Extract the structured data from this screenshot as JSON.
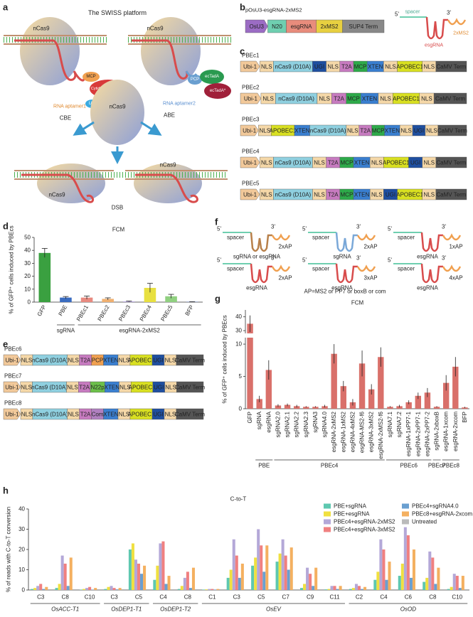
{
  "chart_data": [
    {
      "type": "bar",
      "panel": "d",
      "title": "FCM",
      "ylabel": "% of GFP⁺ cells induced by PBEcs",
      "categories": [
        "GFP",
        "PBE",
        "PBEc1",
        "PBEc2",
        "PBEc3",
        "PBEc4",
        "PBEc5",
        "BFP"
      ],
      "values": [
        38,
        3.5,
        3.5,
        2.5,
        0.5,
        11,
        4.5,
        0.2
      ],
      "errors": [
        3.5,
        0.8,
        1.2,
        0.8,
        0.3,
        3.5,
        1.5,
        0.1
      ],
      "colors": [
        "#3aa040",
        "#3a6cc0",
        "#e88a80",
        "#f0b070",
        "#b0a0d8",
        "#e8e040",
        "#90d080",
        "#5070c0"
      ],
      "groups": [
        null,
        "sgRNA",
        "esgRNA-2xMS2",
        "esgRNA-2xMS2",
        "esgRNA-2xMS2",
        "esgRNA-2xMS2",
        "esgRNA-2xMS2",
        "esgRNA-2xMS2"
      ],
      "ylim": [
        0,
        50
      ],
      "yticks": [
        0,
        10,
        20,
        30,
        40,
        50
      ]
    },
    {
      "type": "bar",
      "panel": "g",
      "title": "FCM",
      "ylabel": "% of GFP⁺ cells induced by PBEcs",
      "categories": [
        "GFP",
        "sgRNA",
        "esgRNA",
        "sgRNA2.0",
        "sgRNA2.1",
        "sgRNA2.2",
        "sgRNA2.3",
        "sgRNA3",
        "sgRNA4.0",
        "esgRNA-2xMS2",
        "esgRNA-1xMS2",
        "esgRNA-4xMS2",
        "esgRNA-MS2-f6",
        "esgRNA-3xMS2",
        "esgRNA-2xMS2-f6",
        "sgRNA7.1",
        "sgRNA7.2",
        "esgRNA-1xPP7-1",
        "esgRNA-2xPP7-1",
        "esgRNA-2xPP7-2",
        "sgRNA-2xboxB",
        "esgRNA-1xcom",
        "esgRNA-2xcom",
        "BFP"
      ],
      "values": [
        35,
        1.5,
        6,
        0.5,
        0.6,
        0.4,
        0.3,
        0.3,
        0.4,
        8.5,
        3.5,
        1,
        7,
        3,
        8,
        0.3,
        0.4,
        1,
        2,
        2.5,
        0.3,
        4,
        6.5,
        0.2
      ],
      "errors": [
        6,
        0.5,
        1.5,
        0.2,
        0.2,
        0.2,
        0.1,
        0.1,
        0.2,
        1.5,
        0.8,
        0.5,
        2,
        0.8,
        1.5,
        0.1,
        0.2,
        0.3,
        0.5,
        0.7,
        0.1,
        1.2,
        1.5,
        0.1
      ],
      "color": "#d9706a",
      "groups": [
        null,
        "PBE",
        "PBE",
        "PBEc4",
        "PBEc4",
        "PBEc4",
        "PBEc4",
        "PBEc4",
        "PBEc4",
        "PBEc4",
        "PBEc4",
        "PBEc4",
        "PBEc4",
        "PBEc4",
        "PBEc4",
        "PBEc6",
        "PBEc6",
        "PBEc6",
        "PBEc6",
        "PBEc6",
        "PBEc7",
        "PBEc8",
        "PBEc8",
        null
      ],
      "ylim": [
        0,
        45
      ],
      "axis_break": [
        11,
        28
      ],
      "yticks": [
        0,
        5,
        10,
        30,
        40
      ]
    },
    {
      "type": "grouped_bar",
      "panel": "h",
      "title": "C-to-T",
      "ylabel": "% of reads with C-to-T conversion",
      "categories": [
        "C3",
        "C8",
        "C10",
        "C3",
        "C5",
        "C4",
        "C8",
        "C1",
        "C3",
        "C5",
        "C7",
        "C9",
        "C11",
        "C2",
        "C4",
        "C6",
        "C8",
        "C10"
      ],
      "genes": [
        "OsACC-T1",
        "OsACC-T1",
        "OsACC-T1",
        "OsDEP1-T1",
        "OsDEP1-T1",
        "OsDEP1-T2",
        "OsDEP1-T2",
        "OsEV",
        "OsEV",
        "OsEV",
        "OsEV",
        "OsEV",
        "OsEV",
        "OsOD",
        "OsOD",
        "OsOD",
        "OsOD",
        "OsOD"
      ],
      "series": [
        {
          "name": "PBE+sgRNA",
          "color": "#5ec8b0",
          "values": [
            0.5,
            1,
            0.2,
            0.5,
            20,
            5,
            0.5,
            0.2,
            6,
            12,
            14,
            1,
            0.3,
            0.5,
            5,
            7,
            4,
            0.5
          ]
        },
        {
          "name": "PBE+esgRNA",
          "color": "#f0e040",
          "values": [
            1,
            3,
            0.5,
            1.5,
            23,
            12,
            2,
            0.3,
            10,
            16,
            18,
            3,
            0.5,
            1,
            9,
            13,
            6,
            1.5
          ]
        },
        {
          "name": "PBEc4+esgRNA-2xMS2",
          "color": "#b4a8d8",
          "values": [
            2,
            17,
            1,
            2,
            15,
            23,
            6,
            0.5,
            25,
            30,
            25,
            11,
            2,
            3,
            25,
            31,
            19,
            8
          ]
        },
        {
          "name": "PBEc4+esgRNA-3xMS2",
          "color": "#f08080",
          "values": [
            3,
            13,
            1.5,
            1,
            13,
            24,
            9,
            0.5,
            17,
            22,
            17,
            8,
            2,
            2,
            20,
            27,
            16,
            7
          ]
        },
        {
          "name": "PBEc4+sgRNA4.0",
          "color": "#6a9fd0",
          "values": [
            0.5,
            2,
            0.2,
            0.3,
            8,
            3,
            1,
            0.2,
            6,
            9,
            10,
            2,
            0.5,
            0.5,
            5,
            6,
            3,
            1
          ]
        },
        {
          "name": "PBEc8+esgRNA-2xcom",
          "color": "#f4b060",
          "values": [
            1.5,
            16,
            1,
            1,
            12,
            7,
            11,
            0.5,
            13,
            22,
            21,
            11,
            2,
            1.5,
            14,
            20,
            11,
            7
          ]
        },
        {
          "name": "Untreated",
          "color": "#bbbbbb",
          "values": [
            0,
            0,
            0,
            0,
            0,
            0,
            0,
            0,
            0,
            0,
            0,
            0,
            0,
            0,
            0,
            0,
            0,
            0
          ]
        }
      ],
      "ylim": [
        0,
        40
      ],
      "yticks": [
        0,
        10,
        20,
        30,
        40
      ]
    }
  ],
  "diagrams": {
    "segment_colors": {
      "Ubi-1": "#f2c99a",
      "NLS": "#f5d8a8",
      "nCas9 (D10A)": "#8fd0e0",
      "UGI": "#1f4fa0",
      "T2A": "#c77bc0",
      "MCP": "#2eaa4a",
      "XTEN": "#3a7fd0",
      "APOBEC1": "#d9e021",
      "CaMV Term": "#555555",
      "PCP": "#f0a050",
      "N22p": "#6cc04a",
      "Com": "#b080c0",
      "OsU3": "#9b6cc4",
      "N20": "#6fcfb0",
      "esgRNA": "#e88c7c",
      "2xMS2": "#e8d040",
      "SUP4 Term": "#888888"
    },
    "a": {
      "label": "a",
      "title": "The SWISS platform",
      "ncas9": [
        "nCas9",
        "nCas9",
        "nCas9",
        "nCas9",
        "nCas9"
      ],
      "cbe": "CBE",
      "abe": "ABE",
      "dsb": "DSB",
      "mcp": "MCP",
      "cytidine": "Cytidine deaminase",
      "aptamer1": "RNA aptamer1",
      "ugi": "UGI",
      "pcp": "PCP",
      "tada": "ecTadA",
      "tada_star": "ecTadA*",
      "aptamer2": "RNA aptamer2"
    },
    "b": {
      "label": "b",
      "title": "pOsU3-esgRNA-2xMS2",
      "segments": [
        "OsU3",
        "N20",
        "esgRNA",
        "2xMS2",
        "SUP4 Term"
      ],
      "five": "5'",
      "three": "3'",
      "spacer": "spacer",
      "ap": "2xMS2",
      "rna": "esgRNA"
    },
    "c": {
      "label": "c",
      "constructs": [
        {
          "name": "PBEc1",
          "segments": [
            "Ubi-1",
            "NLS",
            "nCas9 (D10A)",
            "UGI",
            "NLS",
            "T2A",
            "MCP",
            "XTEN",
            "NLS",
            "APOBEC1",
            "NLS",
            "CaMV Term"
          ]
        },
        {
          "name": "PBEc2",
          "segments": [
            "Ubi-1",
            "NLS",
            "nCas9 (D10A)",
            "NLS",
            "T2A",
            "MCP",
            "XTEN",
            "NLS",
            "APOBEC1",
            "NLS",
            "CaMV Term"
          ]
        },
        {
          "name": "PBEc3",
          "segments": [
            "Ubi-1",
            "NLS",
            "APOBEC1",
            "XTEN",
            "nCas9 (D10A)",
            "NLS",
            "T2A",
            "MCP",
            "XTEN",
            "NLS",
            "UGI",
            "NLS",
            "CaMV Term"
          ]
        },
        {
          "name": "PBEc4",
          "segments": [
            "Ubi-1",
            "NLS",
            "nCas9 (D10A)",
            "NLS",
            "T2A",
            "MCP",
            "XTEN",
            "NLS",
            "APOBEC1",
            "UGI",
            "NLS",
            "CaMV Term"
          ]
        },
        {
          "name": "PBEc5",
          "segments": [
            "Ubi-1",
            "NLS",
            "nCas9 (D10A)",
            "NLS",
            "T2A",
            "MCP",
            "XTEN",
            "NLS",
            "UGI",
            "APOBEC1",
            "NLS",
            "CaMV Term"
          ]
        }
      ]
    },
    "e": {
      "label": "e",
      "constructs": [
        {
          "name": "PBEc6",
          "segments": [
            "Ubi-1",
            "NLS",
            "nCas9 (D10A)",
            "NLS",
            "T2A",
            "PCP",
            "XTEN",
            "NLS",
            "APOBEC1",
            "UGI",
            "NLS",
            "CaMV Term"
          ]
        },
        {
          "name": "PBEc7",
          "segments": [
            "Ubi-1",
            "NLS",
            "nCas9 (D10A)",
            "NLS",
            "T2A",
            "N22p",
            "XTEN",
            "NLS",
            "APOBEC1",
            "UGI",
            "NLS",
            "CaMV Term"
          ]
        },
        {
          "name": "PBEc8",
          "segments": [
            "Ubi-1",
            "NLS",
            "nCas9 (D10A)",
            "NLS",
            "T2A",
            "Com",
            "XTEN",
            "NLS",
            "APOBEC1",
            "UGI",
            "NLS",
            "CaMV Term"
          ]
        }
      ]
    },
    "f": {
      "label": "f",
      "note": "AP=MS2 or PP7 or boxB or com",
      "items": [
        {
          "five": "5'",
          "three": "3'",
          "spacer": "spacer",
          "rna": "sgRNA or esgRNA",
          "ap": "2xAP",
          "rna_color": "#b8804a"
        },
        {
          "five": "5'",
          "three": "3'",
          "spacer": "spacer",
          "rna": "sgRNA",
          "ap": "2xAP",
          "rna_color": "#7aa8d8"
        },
        {
          "five": "5'",
          "three": "3'",
          "spacer": "spacer",
          "rna": "esgRNA",
          "ap": "1xAP",
          "rna_color": "#d84c4c"
        },
        {
          "five": "5'",
          "three": "3'",
          "spacer": "spacer",
          "rna": "esgRNA",
          "ap": "2xAP",
          "rna_color": "#d84c4c"
        },
        {
          "five": "5'",
          "three": "3'",
          "spacer": "spacer",
          "rna": "esgRNA",
          "ap": "3xAP",
          "rna_color": "#d84c4c"
        },
        {
          "five": "5'",
          "three": "3'",
          "spacer": "spacer",
          "rna": "esgRNA",
          "ap": "4xAP",
          "rna_color": "#d84c4c"
        }
      ]
    }
  }
}
